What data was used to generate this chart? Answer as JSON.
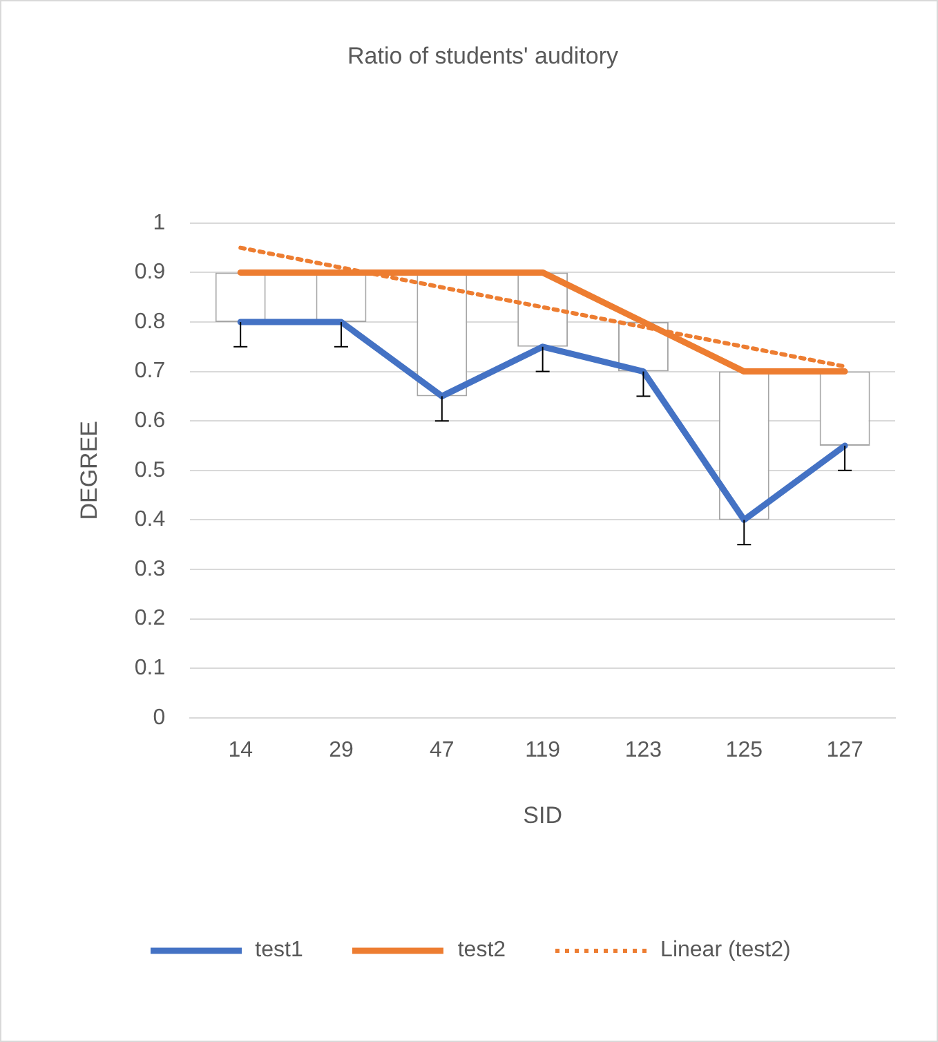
{
  "chart_data": {
    "type": "line",
    "title": "Ratio of students' auditory",
    "xlabel": "SID",
    "ylabel": "DEGREE",
    "categories": [
      "14",
      "29",
      "47",
      "119",
      "123",
      "125",
      "127"
    ],
    "series": [
      {
        "type": "bar",
        "color": "#ffffff",
        "base": [
          0.8,
          0.8,
          0.65,
          0.75,
          0.7,
          0.4,
          0.55
        ],
        "values": [
          0.1,
          0.1,
          0.25,
          0.15,
          0.1,
          0.3,
          0.15
        ]
      },
      {
        "name": "test1",
        "color": "#4472c4",
        "values": [
          0.8,
          0.8,
          0.65,
          0.75,
          0.7,
          0.4,
          0.55
        ],
        "errors": [
          [
            0.75,
            0.8
          ],
          [
            0.75,
            0.8
          ],
          [
            0.6,
            0.65
          ],
          [
            0.7,
            0.75
          ],
          [
            0.65,
            0.7
          ],
          [
            0.35,
            0.4
          ],
          [
            0.5,
            0.55
          ]
        ]
      },
      {
        "name": "test2",
        "color": "#ed7d31",
        "values": [
          0.9,
          0.9,
          0.9,
          0.9,
          0.8,
          0.7,
          0.7
        ]
      },
      {
        "name": "Linear (test2)",
        "color": "#ed7d31",
        "line_style": "dotted",
        "values": [
          0.95,
          0.91,
          0.87,
          0.83,
          0.79,
          0.75,
          0.71
        ]
      }
    ],
    "ylim": [
      0,
      1
    ],
    "yticks": [
      0,
      0.1,
      0.2,
      0.3,
      0.4,
      0.5,
      0.6,
      0.7,
      0.8,
      0.9,
      1
    ],
    "grid": "y",
    "legend": "bottom",
    "marker": "none",
    "line_style": "solid"
  }
}
